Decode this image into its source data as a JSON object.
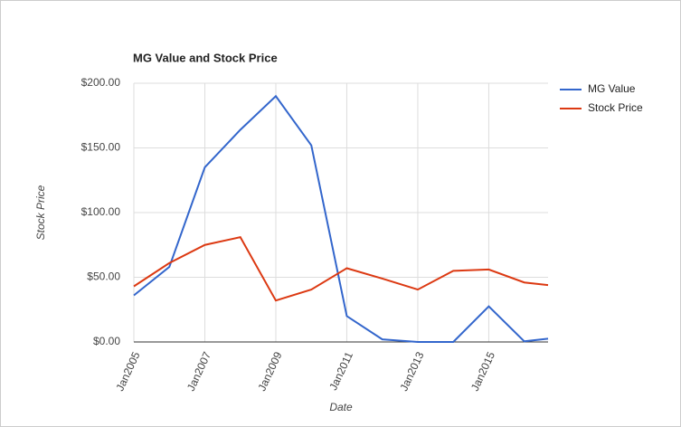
{
  "chart_data": {
    "type": "line",
    "title": "MG Value and Stock Price",
    "x_label": "Date",
    "y_label": "Stock Price",
    "x": [
      2005,
      2006,
      2007,
      2008,
      2009,
      2010,
      2011,
      2012,
      2013,
      2014,
      2015,
      2016,
      2016.67
    ],
    "xlim": [
      2005,
      2016.67
    ],
    "xticks": [
      {
        "value": 2005,
        "label": "Jan2005"
      },
      {
        "value": 2007,
        "label": "Jan2007"
      },
      {
        "value": 2009,
        "label": "Jan2009"
      },
      {
        "value": 2011,
        "label": "Jan2011"
      },
      {
        "value": 2013,
        "label": "Jan2013"
      },
      {
        "value": 2015,
        "label": "Jan2015"
      }
    ],
    "ylim": [
      0,
      200
    ],
    "yticks": [
      {
        "value": 0,
        "label": "$0.00"
      },
      {
        "value": 50,
        "label": "$50.00"
      },
      {
        "value": 100,
        "label": "$100.00"
      },
      {
        "value": 150,
        "label": "$150.00"
      },
      {
        "value": 200,
        "label": "$200.00"
      }
    ],
    "grid": true,
    "legend": "right",
    "series": [
      {
        "name": "MG Value",
        "color": "#3366cc",
        "values": [
          36,
          58,
          135,
          164,
          190,
          152,
          20,
          2,
          0,
          0,
          27.5,
          0.5,
          2.5
        ]
      },
      {
        "name": "Stock Price",
        "color": "#dc3912",
        "values": [
          43,
          61,
          75,
          81,
          32,
          40.5,
          57,
          49,
          40.5,
          55,
          56,
          46,
          44
        ]
      }
    ]
  }
}
